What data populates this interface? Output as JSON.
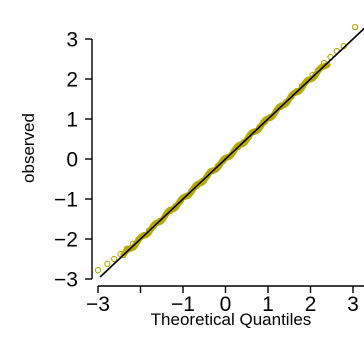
{
  "chart_data": {
    "type": "scatter",
    "plot_kind": "normal Q-Q plot",
    "title": "",
    "xlabel": "Theoretical Quantiles",
    "ylabel": "observed",
    "x_ticks": [
      -3,
      -1,
      0,
      1,
      2,
      3
    ],
    "x_tick_labels": [
      "−3",
      "−1",
      "0",
      "1",
      "2",
      "3"
    ],
    "x_minor_ticks": [
      -2
    ],
    "y_ticks": [
      -3,
      -2,
      -1,
      0,
      1,
      2,
      3
    ],
    "y_tick_labels": [
      "−3",
      "−2",
      "−1",
      "0",
      "1",
      "2",
      "3"
    ],
    "xlim": [
      -3.15,
      3.15
    ],
    "ylim": [
      -3.15,
      3.45
    ],
    "reference_line": {
      "intercept": 0,
      "slope": 1
    },
    "point_color": "#b5a800",
    "line_color": "#000000",
    "grid": false,
    "legend": "none",
    "series": [
      {
        "points": [
          [
            -3.0,
            -2.78
          ],
          [
            -2.78,
            -2.62
          ],
          [
            -2.62,
            -2.5
          ],
          [
            -2.47,
            -2.38
          ],
          [
            -2.32,
            -2.24
          ],
          [
            -2.18,
            -2.12
          ],
          [
            -2.05,
            -2.02
          ],
          [
            -1.92,
            -1.9
          ],
          [
            -1.8,
            -1.79
          ],
          [
            -1.68,
            -1.67
          ],
          [
            -1.55,
            -1.55
          ],
          [
            -1.42,
            -1.42
          ],
          [
            -1.3,
            -1.3
          ],
          [
            -1.18,
            -1.18
          ],
          [
            -1.05,
            -1.05
          ],
          [
            -0.92,
            -0.92
          ],
          [
            -0.8,
            -0.8
          ],
          [
            -0.68,
            -0.68
          ],
          [
            -0.55,
            -0.55
          ],
          [
            -0.42,
            -0.42
          ],
          [
            -0.3,
            -0.3
          ],
          [
            -0.18,
            -0.18
          ],
          [
            -0.05,
            -0.05
          ],
          [
            0.05,
            0.05
          ],
          [
            0.18,
            0.18
          ],
          [
            0.3,
            0.3
          ],
          [
            0.42,
            0.42
          ],
          [
            0.55,
            0.55
          ],
          [
            0.68,
            0.68
          ],
          [
            0.8,
            0.8
          ],
          [
            0.92,
            0.92
          ],
          [
            1.05,
            1.05
          ],
          [
            1.18,
            1.18
          ],
          [
            1.3,
            1.3
          ],
          [
            1.42,
            1.42
          ],
          [
            1.55,
            1.56
          ],
          [
            1.68,
            1.7
          ],
          [
            1.8,
            1.83
          ],
          [
            1.92,
            1.96
          ],
          [
            2.05,
            2.1
          ],
          [
            2.18,
            2.22
          ],
          [
            2.32,
            2.4
          ],
          [
            2.47,
            2.55
          ],
          [
            2.62,
            2.7
          ],
          [
            2.78,
            2.82
          ],
          [
            3.05,
            3.3
          ]
        ]
      }
    ]
  }
}
